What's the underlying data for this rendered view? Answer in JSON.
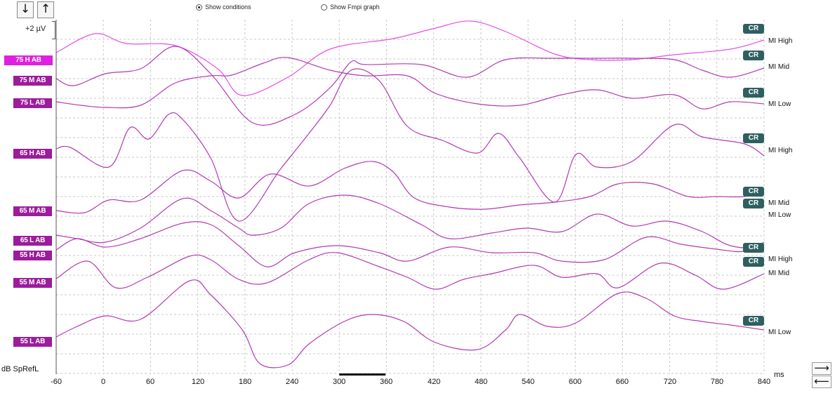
{
  "toolbar": {
    "down_arrow": "↓",
    "up_arrow": "↑",
    "radio_show_conditions": "Show conditions",
    "radio_show_fmpi": "Show Fmpi graph",
    "show_conditions_selected": true
  },
  "scale": {
    "label": "+2 µV"
  },
  "axis": {
    "x_unit": "ms",
    "y_unit": "dB SpRefL",
    "x_ticks": [
      "-60",
      "0",
      "60",
      "120",
      "180",
      "240",
      "300",
      "360",
      "420",
      "480",
      "540",
      "600",
      "660",
      "720",
      "780",
      "840"
    ]
  },
  "conditions": [
    {
      "label": "75 H AB",
      "selected": true
    },
    {
      "label": "75 M AB"
    },
    {
      "label": "75 L AB"
    },
    {
      "label": "65 H AB"
    },
    {
      "label": "65 M AB"
    },
    {
      "label": "65 L AB"
    },
    {
      "label": "55 H AB"
    },
    {
      "label": "55 M AB"
    },
    {
      "label": "55 L AB"
    }
  ],
  "cr_badge": "CR",
  "right_labels": [
    "MI High",
    "MI Mid",
    "MI Low",
    "MI High",
    "MI Mid",
    "MI Low",
    "MI High",
    "MI Mid",
    "MI Low"
  ],
  "nav": {
    "forward": "⟶",
    "back": "⟵"
  },
  "colors": {
    "trace": "#b23ab2",
    "trace_selected": "#e64fe6",
    "condition_box": "#9c1c9c",
    "condition_box_selected": "#e020e0",
    "cr_badge": "#2f5f60",
    "grid": "#c8c8c8"
  }
}
